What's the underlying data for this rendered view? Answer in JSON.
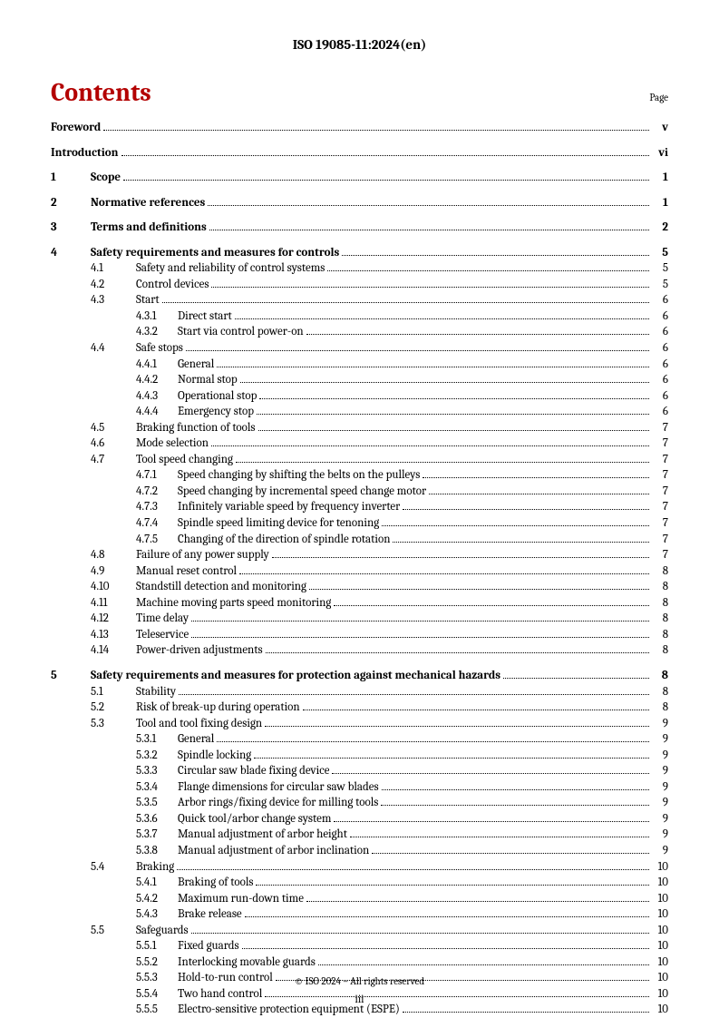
{
  "header": "ISO 19085-11:2024(en)",
  "contents_title": "Contents",
  "page_label": "Page",
  "footer": "© ISO 2024 – All rights reserved",
  "page_number": "iii",
  "entries": [
    {
      "level": 0,
      "num": "",
      "title": "Foreword",
      "page": "v",
      "bold": true,
      "spaced": false
    },
    {
      "level": 0,
      "num": "",
      "title": "Introduction",
      "page": "vi",
      "bold": true,
      "spaced": true
    },
    {
      "level": 1,
      "num": "1",
      "title": "Scope",
      "page": "1",
      "bold": true,
      "spaced": true
    },
    {
      "level": 1,
      "num": "2",
      "title": "Normative references",
      "page": "1",
      "bold": true,
      "spaced": true
    },
    {
      "level": 1,
      "num": "3",
      "title": "Terms and definitions",
      "page": "2",
      "bold": true,
      "spaced": true
    },
    {
      "level": 1,
      "num": "4",
      "title": "Safety requirements and measures for controls",
      "page": "5",
      "bold": true,
      "spaced": true
    },
    {
      "level": 2,
      "num": "4.1",
      "title": "Safety and reliability of control systems",
      "page": "5",
      "bold": false,
      "spaced": false
    },
    {
      "level": 2,
      "num": "4.2",
      "title": "Control devices",
      "page": "5",
      "bold": false,
      "spaced": false
    },
    {
      "level": 2,
      "num": "4.3",
      "title": "Start",
      "page": "6",
      "bold": false,
      "spaced": false
    },
    {
      "level": 3,
      "num": "4.3.1",
      "title": "Direct start",
      "page": "6",
      "bold": false,
      "spaced": false
    },
    {
      "level": 3,
      "num": "4.3.2",
      "title": "Start via control power-on",
      "page": "6",
      "bold": false,
      "spaced": false
    },
    {
      "level": 2,
      "num": "4.4",
      "title": "Safe stops",
      "page": "6",
      "bold": false,
      "spaced": false
    },
    {
      "level": 3,
      "num": "4.4.1",
      "title": "General",
      "page": "6",
      "bold": false,
      "spaced": false
    },
    {
      "level": 3,
      "num": "4.4.2",
      "title": "Normal stop",
      "page": "6",
      "bold": false,
      "spaced": false
    },
    {
      "level": 3,
      "num": "4.4.3",
      "title": "Operational stop",
      "page": "6",
      "bold": false,
      "spaced": false
    },
    {
      "level": 3,
      "num": "4.4.4",
      "title": "Emergency stop",
      "page": "6",
      "bold": false,
      "spaced": false
    },
    {
      "level": 2,
      "num": "4.5",
      "title": "Braking function of tools",
      "page": "7",
      "bold": false,
      "spaced": false
    },
    {
      "level": 2,
      "num": "4.6",
      "title": "Mode selection",
      "page": "7",
      "bold": false,
      "spaced": false
    },
    {
      "level": 2,
      "num": "4.7",
      "title": "Tool speed changing",
      "page": "7",
      "bold": false,
      "spaced": false
    },
    {
      "level": 3,
      "num": "4.7.1",
      "title": "Speed changing by shifting the belts on the pulleys",
      "page": "7",
      "bold": false,
      "spaced": false
    },
    {
      "level": 3,
      "num": "4.7.2",
      "title": "Speed changing by incremental speed change motor",
      "page": "7",
      "bold": false,
      "spaced": false
    },
    {
      "level": 3,
      "num": "4.7.3",
      "title": "Infinitely variable speed by frequency inverter",
      "page": "7",
      "bold": false,
      "spaced": false
    },
    {
      "level": 3,
      "num": "4.7.4",
      "title": "Spindle speed limiting device for tenoning",
      "page": "7",
      "bold": false,
      "spaced": false
    },
    {
      "level": 3,
      "num": "4.7.5",
      "title": "Changing of the direction of spindle rotation",
      "page": "7",
      "bold": false,
      "spaced": false
    },
    {
      "level": 2,
      "num": "4.8",
      "title": "Failure of any power supply",
      "page": "7",
      "bold": false,
      "spaced": false
    },
    {
      "level": 2,
      "num": "4.9",
      "title": "Manual reset control",
      "page": "8",
      "bold": false,
      "spaced": false
    },
    {
      "level": 2,
      "num": "4.10",
      "title": "Standstill detection and monitoring",
      "page": "8",
      "bold": false,
      "spaced": false
    },
    {
      "level": 2,
      "num": "4.11",
      "title": "Machine moving parts speed monitoring",
      "page": "8",
      "bold": false,
      "spaced": false
    },
    {
      "level": 2,
      "num": "4.12",
      "title": "Time delay",
      "page": "8",
      "bold": false,
      "spaced": false
    },
    {
      "level": 2,
      "num": "4.13",
      "title": "Teleservice",
      "page": "8",
      "bold": false,
      "spaced": false
    },
    {
      "level": 2,
      "num": "4.14",
      "title": "Power-driven adjustments",
      "page": "8",
      "bold": false,
      "spaced": false
    },
    {
      "level": 1,
      "num": "5",
      "title": "Safety requirements and measures for protection against mechanical hazards",
      "page": "8",
      "bold": true,
      "spaced": true
    },
    {
      "level": 2,
      "num": "5.1",
      "title": "Stability",
      "page": "8",
      "bold": false,
      "spaced": false
    },
    {
      "level": 2,
      "num": "5.2",
      "title": "Risk of break-up during operation",
      "page": "8",
      "bold": false,
      "spaced": false
    },
    {
      "level": 2,
      "num": "5.3",
      "title": "Tool and tool fixing design",
      "page": "9",
      "bold": false,
      "spaced": false
    },
    {
      "level": 3,
      "num": "5.3.1",
      "title": "General",
      "page": "9",
      "bold": false,
      "spaced": false
    },
    {
      "level": 3,
      "num": "5.3.2",
      "title": "Spindle locking",
      "page": "9",
      "bold": false,
      "spaced": false
    },
    {
      "level": 3,
      "num": "5.3.3",
      "title": "Circular saw blade fixing device",
      "page": "9",
      "bold": false,
      "spaced": false
    },
    {
      "level": 3,
      "num": "5.3.4",
      "title": "Flange dimensions for circular saw blades",
      "page": "9",
      "bold": false,
      "spaced": false
    },
    {
      "level": 3,
      "num": "5.3.5",
      "title": "Arbor rings/fixing device for milling tools",
      "page": "9",
      "bold": false,
      "spaced": false
    },
    {
      "level": 3,
      "num": "5.3.6",
      "title": "Quick tool/arbor change system",
      "page": "9",
      "bold": false,
      "spaced": false
    },
    {
      "level": 3,
      "num": "5.3.7",
      "title": "Manual adjustment of arbor height",
      "page": "9",
      "bold": false,
      "spaced": false
    },
    {
      "level": 3,
      "num": "5.3.8",
      "title": "Manual adjustment of arbor inclination",
      "page": "9",
      "bold": false,
      "spaced": false
    },
    {
      "level": 2,
      "num": "5.4",
      "title": "Braking",
      "page": "10",
      "bold": false,
      "spaced": false
    },
    {
      "level": 3,
      "num": "5.4.1",
      "title": "Braking of tools",
      "page": "10",
      "bold": false,
      "spaced": false
    },
    {
      "level": 3,
      "num": "5.4.2",
      "title": "Maximum run-down time",
      "page": "10",
      "bold": false,
      "spaced": false
    },
    {
      "level": 3,
      "num": "5.4.3",
      "title": "Brake release",
      "page": "10",
      "bold": false,
      "spaced": false
    },
    {
      "level": 2,
      "num": "5.5",
      "title": "Safeguards",
      "page": "10",
      "bold": false,
      "spaced": false
    },
    {
      "level": 3,
      "num": "5.5.1",
      "title": "Fixed guards",
      "page": "10",
      "bold": false,
      "spaced": false
    },
    {
      "level": 3,
      "num": "5.5.2",
      "title": "Interlocking movable guards",
      "page": "10",
      "bold": false,
      "spaced": false
    },
    {
      "level": 3,
      "num": "5.5.3",
      "title": "Hold-to-run control",
      "page": "10",
      "bold": false,
      "spaced": false
    },
    {
      "level": 3,
      "num": "5.5.4",
      "title": "Two hand control",
      "page": "10",
      "bold": false,
      "spaced": false
    },
    {
      "level": 3,
      "num": "5.5.5",
      "title": "Electro-sensitive protection equipment (ESPE)",
      "page": "10",
      "bold": false,
      "spaced": false
    }
  ]
}
